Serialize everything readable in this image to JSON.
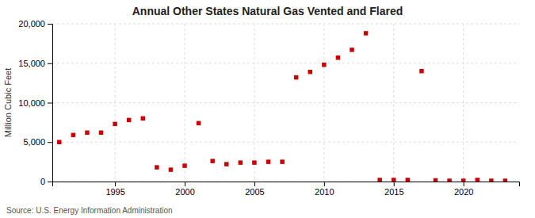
{
  "chart_data": {
    "type": "scatter",
    "title": "Annual Other States Natural Gas Vented and Flared",
    "ylabel": "Million Cubic Feet",
    "annotation": "Source: U.S. Energy Information Administration",
    "x": [
      1991,
      1992,
      1993,
      1994,
      1995,
      1996,
      1997,
      1998,
      1999,
      2000,
      2001,
      2002,
      2003,
      2004,
      2005,
      2006,
      2007,
      2008,
      2009,
      2010,
      2011,
      2012,
      2013,
      2014,
      2015,
      2016,
      2017,
      2018,
      2019,
      2020,
      2021,
      2022,
      2023
    ],
    "values": [
      5000,
      5900,
      6200,
      6200,
      7300,
      7800,
      8000,
      1800,
      1500,
      2000,
      7400,
      2600,
      2200,
      2400,
      2400,
      2500,
      2500,
      13200,
      13900,
      14800,
      15700,
      16700,
      18800,
      200,
      200,
      200,
      14000,
      150,
      100,
      100,
      200,
      100,
      100
    ],
    "color": "#cc0000",
    "marker": "square",
    "xlim": [
      1990.5,
      2024
    ],
    "ylim": [
      0,
      20000
    ],
    "xticks": [
      1995,
      2000,
      2005,
      2010,
      2015,
      2020
    ],
    "yticks": [
      0,
      {
        "value": 5000,
        "label": "5,000"
      },
      {
        "value": 10000,
        "label": "10,000"
      },
      {
        "value": 15000,
        "label": "15,000"
      },
      {
        "value": 20000,
        "label": "20,000"
      }
    ],
    "grid": true
  }
}
